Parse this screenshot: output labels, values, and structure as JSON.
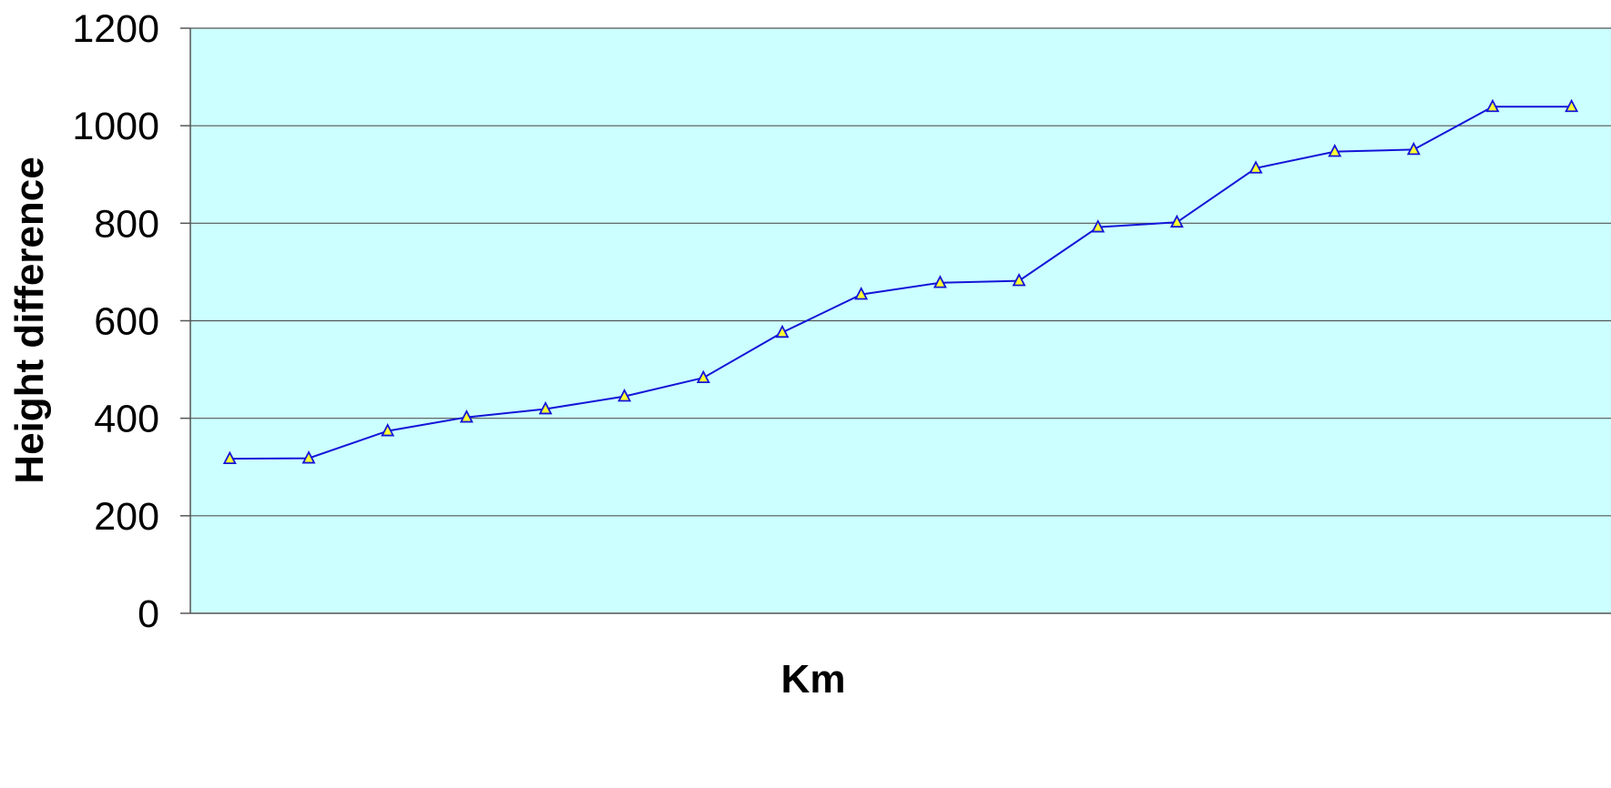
{
  "chart_data": {
    "type": "line",
    "title": "",
    "xlabel": "Km",
    "ylabel": "Height difference",
    "ylim": [
      0,
      1200
    ],
    "yticks": [
      0,
      200,
      400,
      600,
      800,
      1000,
      1200
    ],
    "grid": true,
    "legend": "none",
    "colors": {
      "plot_background": "#ccffff",
      "line": "#1414d8",
      "marker_fill": "#ffff33",
      "marker_stroke": "#1414d8",
      "grid": "#555555"
    },
    "series": [
      {
        "marker": "triangle",
        "values": [
          317,
          318,
          374,
          402,
          419,
          445,
          483,
          576,
          654,
          678,
          682,
          792,
          802,
          913,
          947,
          951,
          1039,
          1039
        ]
      }
    ]
  }
}
